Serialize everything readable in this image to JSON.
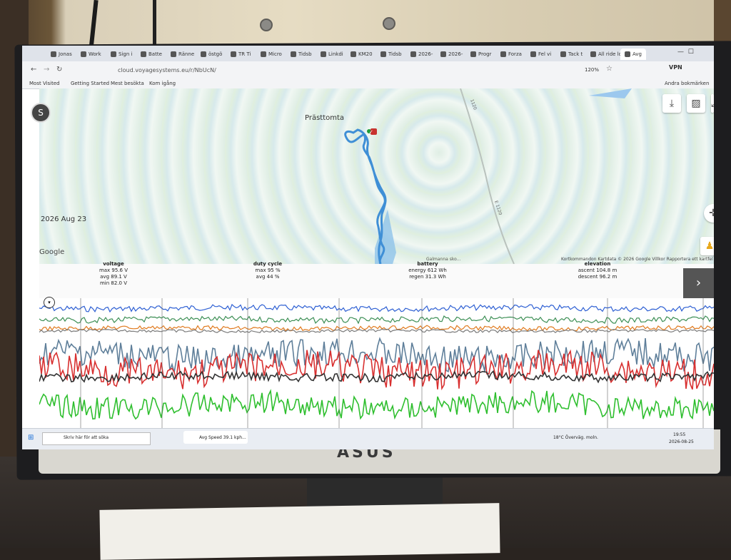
{
  "browser": {
    "tabs": [
      "Jonas",
      "Work",
      "Sign i",
      "Batte",
      "Ränne",
      "östgö",
      "TR Ti",
      "Micro",
      "Tidsb",
      "Linkdi",
      "KM20",
      "Tidsb",
      "2026-",
      "2026-",
      "Progr",
      "Forza",
      "Fel vi",
      "Tack t",
      "All ride lo",
      "Avg"
    ],
    "url": "cloud.voyagesystems.eu/r/NbUcN/",
    "zoom": "120%",
    "vpn": "VPN",
    "bookmarks": [
      "Most Visited",
      "Getting Started",
      "Mest besökta",
      "Kom igång"
    ],
    "other_bookmarks": "Andra bokmärken"
  },
  "map": {
    "place": "Prästtomta",
    "date": "2026 Aug 23",
    "logo": "Google",
    "road_label_1": "1120",
    "road_label_2": "E 1120",
    "attribution": "Kortkommandon    Kartdata © 2026 Google    Villkor    Rapportera ett kartfel",
    "bottom_label": "Galmanna sko...",
    "route_color": "#3f8fd6",
    "controls": [
      "download-icon",
      "image-icon",
      "fullscreen-icon",
      "compass-icon",
      "pegman-icon"
    ]
  },
  "stats": {
    "voltage": {
      "title": "voltage",
      "max": "max 95.6 V",
      "avg": "avg 89.1 V",
      "min": "min 82.0 V"
    },
    "duty": {
      "title": "duty cycle",
      "max": "max 95 %",
      "avg": "avg 44 %"
    },
    "battery": {
      "title": "battery",
      "energy": "energy 612 Wh",
      "regen": "regen 31.3 Wh"
    },
    "elevation": {
      "title": "elevation",
      "ascent": "ascent 104.8 m",
      "descent": "descent 96.2 m"
    },
    "next": "›"
  },
  "chart_data": {
    "type": "line",
    "series": [],
    "colors": [
      "#2d5fd3",
      "#3d8f55",
      "#e07a1e",
      "#7a7a7a",
      "#5f7f9a",
      "#d83030",
      "#2fbf2f",
      "#333333"
    ],
    "grid": false
  },
  "taskbar": {
    "search_placeholder": "Skriv här för att söka",
    "window": "Avg Speed 39.1 kph...",
    "weather": "18°C  Överväg. moln.",
    "time": "19:55",
    "date": "2026-08-25"
  },
  "monitor": {
    "brand": "ASUS"
  }
}
